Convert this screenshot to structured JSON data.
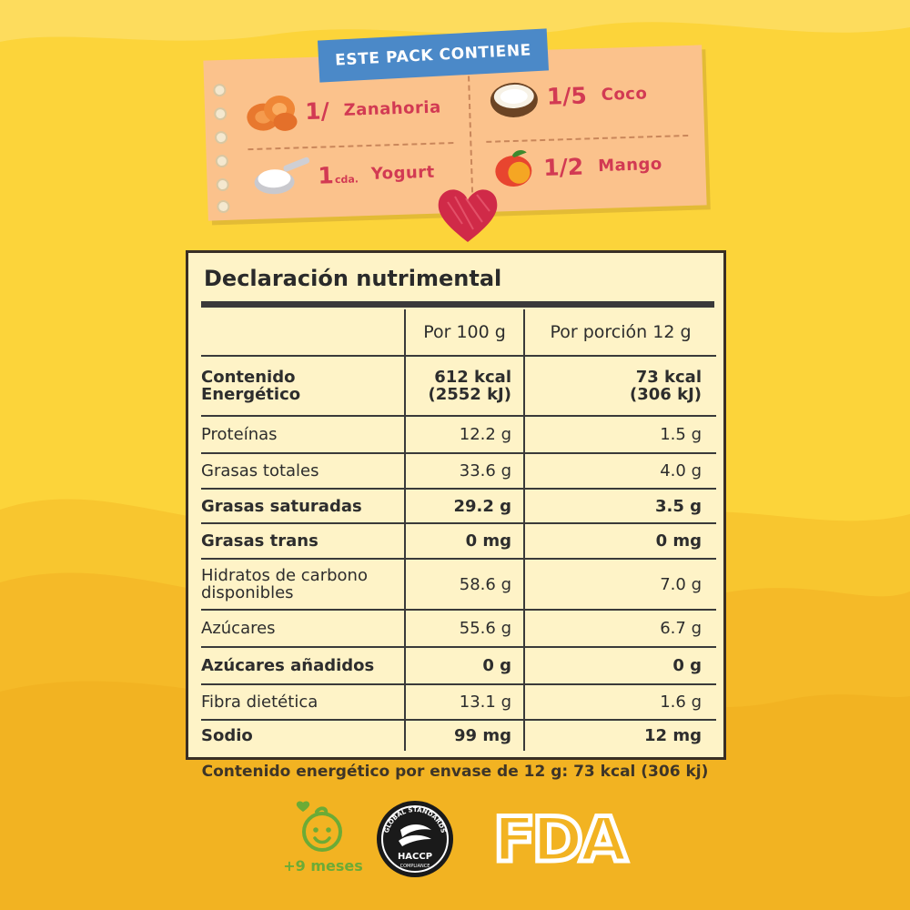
{
  "pack": {
    "title": "ESTE PACK CONTIENE",
    "items": [
      {
        "qty": "1/",
        "unit": "",
        "name": "Zanahoria",
        "icon": "carrot-icon"
      },
      {
        "qty": "1/5",
        "unit": "",
        "name": "Coco",
        "icon": "coconut-icon"
      },
      {
        "qty": "1",
        "unit": "cda.",
        "name": "Yogurt",
        "icon": "yogurt-spoon-icon"
      },
      {
        "qty": "1/2",
        "unit": "",
        "name": "Mango",
        "icon": "mango-icon"
      }
    ]
  },
  "nutrition": {
    "title": "Declaración nutrimental",
    "col1": "Por 100 g",
    "col2": "Por porción 12 g",
    "rows": [
      {
        "label": "Contenido Energético",
        "v1": "612 kcal (2552 kJ)",
        "v2": "73 kcal (306 kJ)",
        "bold": true
      },
      {
        "label": "Proteínas",
        "v1": "12.2 g",
        "v2": "1.5 g",
        "bold": false
      },
      {
        "label": "Grasas totales",
        "v1": "33.6 g",
        "v2": "4.0 g",
        "bold": false
      },
      {
        "label": "Grasas saturadas",
        "v1": "29.2 g",
        "v2": "3.5 g",
        "bold": true
      },
      {
        "label": "Grasas trans",
        "v1": "0 mg",
        "v2": "0 mg",
        "bold": true
      },
      {
        "label": "Hidratos de carbono disponibles",
        "v1": "58.6 g",
        "v2": "7.0 g",
        "bold": false
      },
      {
        "label": "Azúcares",
        "v1": "55.6 g",
        "v2": "6.7 g",
        "bold": false
      },
      {
        "label": "Azúcares añadidos",
        "v1": "0 g",
        "v2": "0 g",
        "bold": true
      },
      {
        "label": "Fibra dietética",
        "v1": "13.1 g",
        "v2": "1.6 g",
        "bold": false
      },
      {
        "label": "Sodio",
        "v1": "99 mg",
        "v2": "12 mg",
        "bold": true
      }
    ],
    "energy_row": {
      "label_a": "Contenido",
      "label_b": "Energético",
      "v1a": "612 kcal",
      "v1b": "(2552 kJ)",
      "v2a": "73 kcal",
      "v2b": "(306 kJ)"
    },
    "carb_row": {
      "label_a": "Hidratos de carbono",
      "label_b": "disponibles"
    },
    "footer": "Contenido energético por envase de 12 g: 73 kcal (306 kj)"
  },
  "logos": {
    "age_label": "+9 meses",
    "haccp_top": "GLOBAL STANDARDS",
    "haccp_main": "HACCP",
    "haccp_bottom": "COMPLIANCE",
    "fda": "FDA"
  },
  "colors": {
    "background": "#fcd43a",
    "card": "#fbc28c",
    "title_bar": "#4b89c8",
    "accent_text": "#d23a53",
    "table_bg": "#fef3c7",
    "green": "#6cab36"
  }
}
